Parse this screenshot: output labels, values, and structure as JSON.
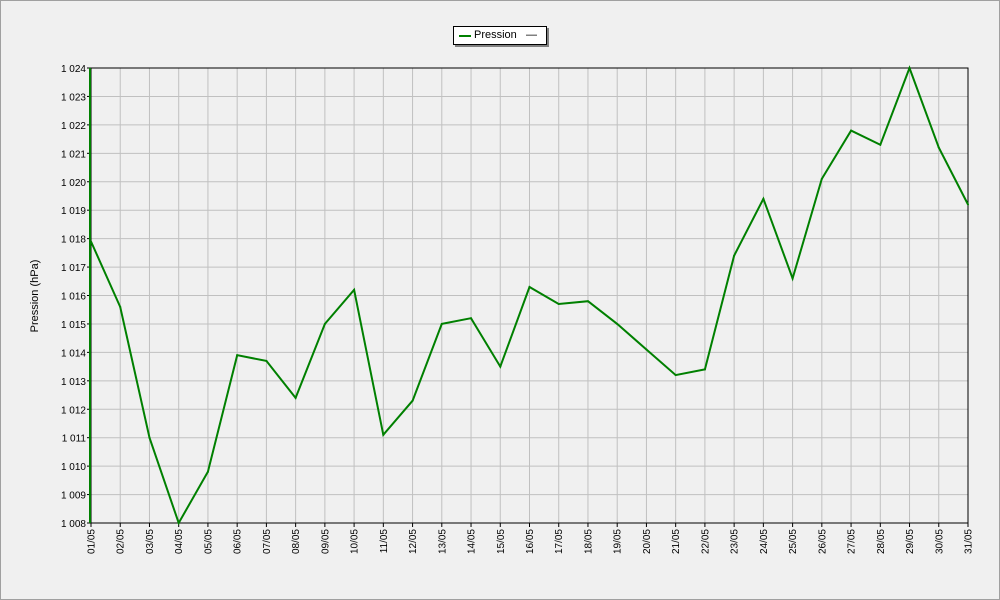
{
  "colors": {
    "series": "#008000",
    "grid": "#c0c0c0",
    "plot_background": "#f0f0f0",
    "frame": "#000000"
  },
  "chart_data": {
    "type": "line",
    "title": "",
    "xlabel": "",
    "ylabel": "Pression (hPa)",
    "ylim": [
      1008,
      1024
    ],
    "yticks": [
      "1 008",
      "1 009",
      "1 010",
      "1 011",
      "1 012",
      "1 013",
      "1 014",
      "1 015",
      "1 016",
      "1 017",
      "1 018",
      "1 019",
      "1 020",
      "1 021",
      "1 022",
      "1 023",
      "1 024"
    ],
    "grid": true,
    "legend_position": "top-center",
    "categories": [
      "01/05",
      "02/05",
      "03/05",
      "04/05",
      "05/05",
      "06/05",
      "07/05",
      "08/05",
      "09/05",
      "10/05",
      "11/05",
      "12/05",
      "13/05",
      "14/05",
      "15/05",
      "16/05",
      "17/05",
      "18/05",
      "19/05",
      "20/05",
      "21/05",
      "22/05",
      "23/05",
      "24/05",
      "25/05",
      "26/05",
      "27/05",
      "28/05",
      "29/05",
      "30/05",
      "31/05"
    ],
    "series": [
      {
        "name": "Pression",
        "legend_marker": "—",
        "color": "#008000",
        "values": [
          1017.9,
          1015.6,
          1011.0,
          1008.0,
          1009.8,
          1013.9,
          1013.7,
          1012.4,
          1015.0,
          1016.2,
          1011.1,
          1012.3,
          1015.0,
          1015.2,
          1013.5,
          1016.3,
          1015.7,
          1015.8,
          1015.0,
          1014.1,
          1013.2,
          1013.4,
          1017.4,
          1019.4,
          1016.6,
          1020.1,
          1021.8,
          1021.3,
          1024.0,
          1021.2,
          1019.2
        ]
      }
    ]
  }
}
